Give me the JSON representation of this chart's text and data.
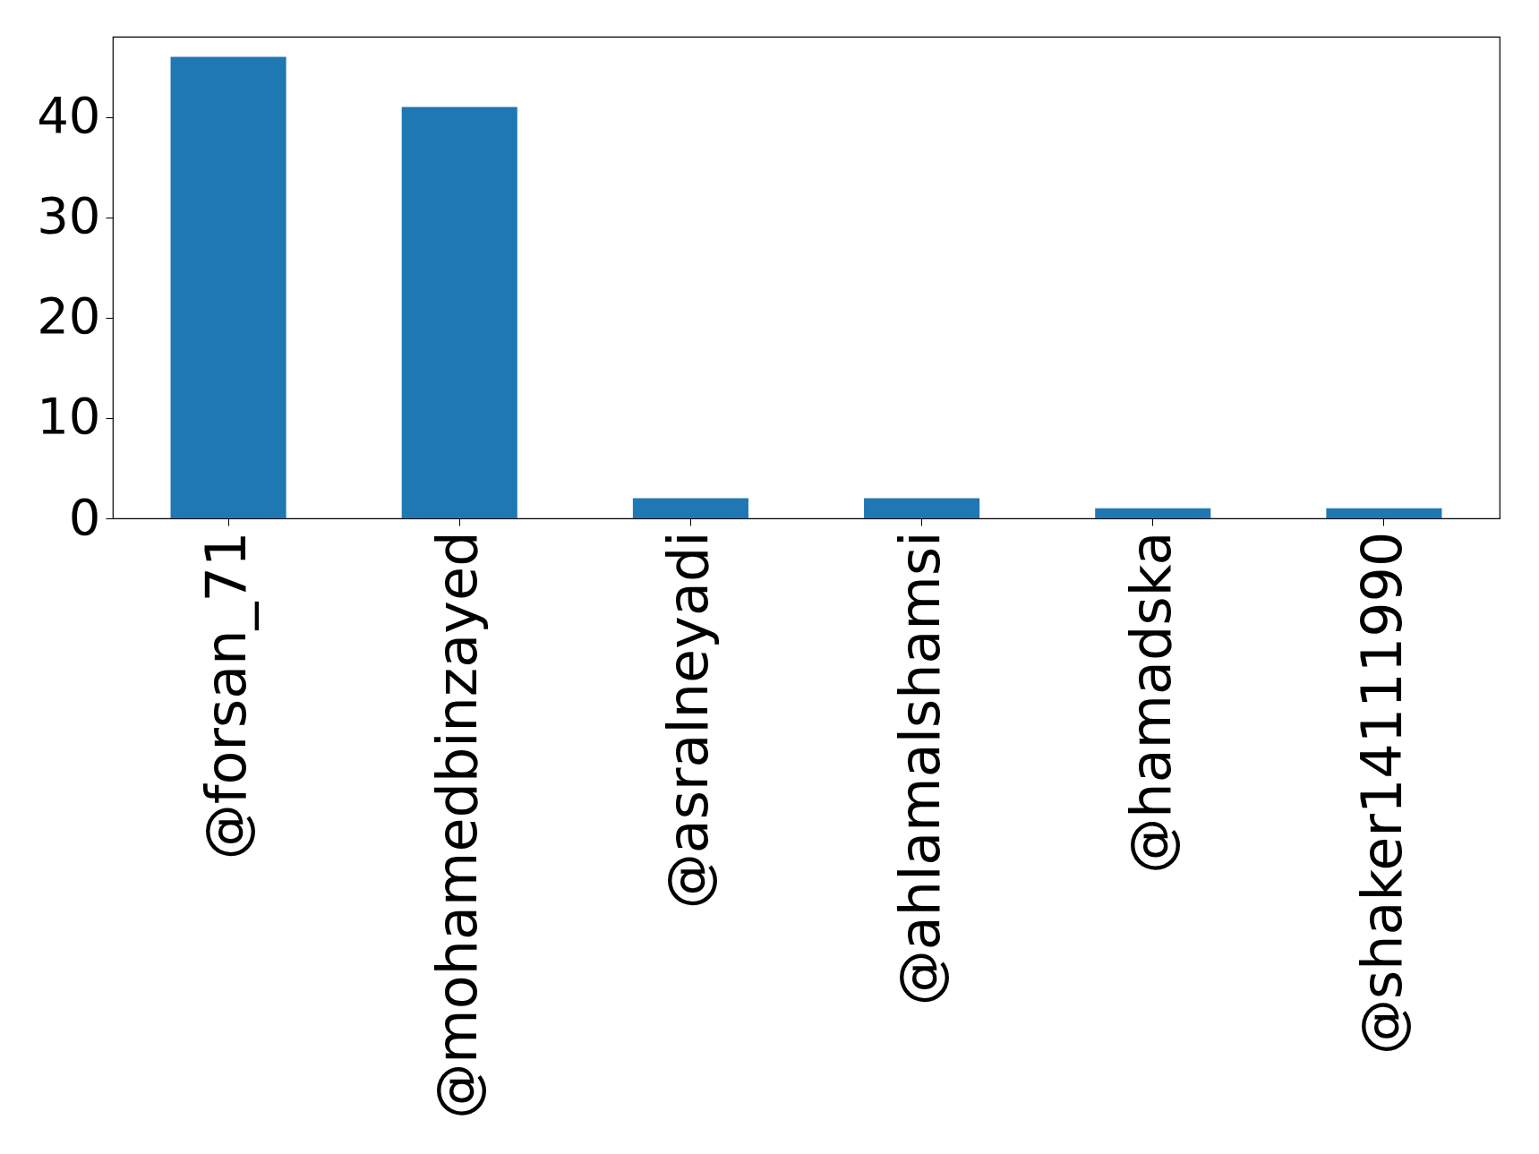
{
  "chart_data": {
    "type": "bar",
    "categories": [
      "@forsan_71",
      "@mohamedbinzayed",
      "@asralneyadi",
      "@ahlamalshamsi",
      "@hamadska",
      "@shaker14111990"
    ],
    "values": [
      46,
      41,
      2,
      2,
      1,
      1
    ],
    "color": "#1f77b4",
    "ylim": [
      0,
      48
    ],
    "yticks": [
      0,
      10,
      20,
      30,
      40
    ],
    "grid": false
  }
}
